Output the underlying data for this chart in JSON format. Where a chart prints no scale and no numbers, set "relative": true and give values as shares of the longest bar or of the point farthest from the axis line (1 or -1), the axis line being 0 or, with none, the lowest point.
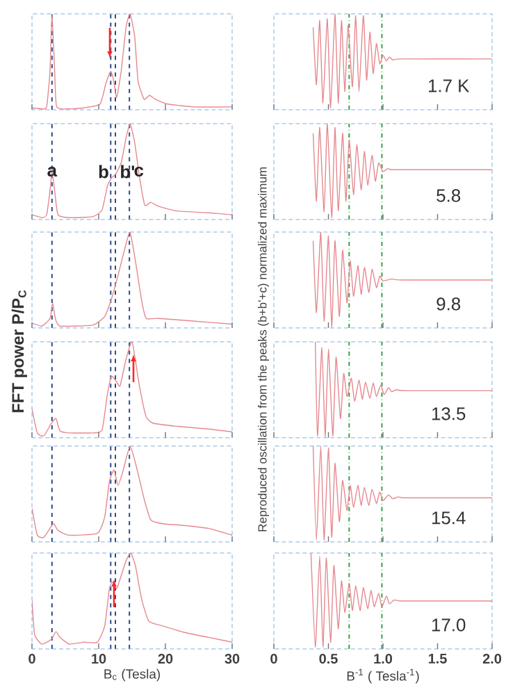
{
  "chart_data": [
    {
      "type": "line",
      "relative": true,
      "color": "#e5898f",
      "xlim": [
        0,
        30
      ],
      "xticks": [
        0,
        10,
        20,
        30
      ],
      "tick_labels": false,
      "x": [
        0,
        1.5,
        2.2,
        2.7,
        3.0,
        3.4,
        3.7,
        5.6,
        7.7,
        10.2,
        11.1,
        11.8,
        12.2,
        12.7,
        13.4,
        14.1,
        14.7,
        15.4,
        15.9,
        16.8,
        17.6,
        18.5,
        20.3,
        24.4,
        30
      ],
      "values": [
        0.02,
        0.01,
        0.03,
        0.4,
        1.0,
        0.4,
        0.03,
        0.01,
        0.02,
        0.06,
        0.28,
        0.4,
        0.32,
        0.13,
        0.42,
        0.86,
        1.0,
        0.76,
        0.3,
        0.11,
        0.15,
        0.11,
        0.06,
        0.03,
        0.03
      ],
      "ref_lines": [
        {
          "axis": "x",
          "value": 3.0,
          "color": "#2e4a8a",
          "line_style": "dashed"
        },
        {
          "axis": "x",
          "value": 11.8,
          "color": "#2e4a8a",
          "line_style": "dashed"
        },
        {
          "axis": "x",
          "value": 12.5,
          "color": "#2e4a8a",
          "line_style": "dashed"
        },
        {
          "axis": "x",
          "value": 14.6,
          "color": "#2e4a8a",
          "line_style": "dashed"
        }
      ]
    },
    {
      "type": "line",
      "relative": true,
      "color": "#e5898f",
      "xlim": [
        0,
        30
      ],
      "xticks": [
        0,
        10,
        20,
        30
      ],
      "tick_labels": false,
      "x": [
        0,
        1.5,
        2.2,
        2.7,
        3.0,
        3.4,
        3.9,
        5.6,
        9.1,
        10.5,
        11.3,
        11.9,
        12.6,
        13.4,
        14.1,
        14.7,
        15.4,
        16.1,
        16.9,
        17.8,
        18.9,
        21.6,
        26.5,
        30
      ],
      "values": [
        0.05,
        0.02,
        0.05,
        0.3,
        0.5,
        0.3,
        0.05,
        0.02,
        0.03,
        0.1,
        0.35,
        0.43,
        0.48,
        0.6,
        0.85,
        1.0,
        0.8,
        0.45,
        0.15,
        0.18,
        0.14,
        0.09,
        0.07,
        0.05
      ],
      "annotations": [
        {
          "text": "a",
          "x": 3.0,
          "y": 0.5
        },
        {
          "text": "b",
          "x": 11.8,
          "y": 0.5
        },
        {
          "text": "b'",
          "x": 12.5,
          "y": 0.5
        },
        {
          "text": "c",
          "x": 14.6,
          "y": 0.5
        }
      ],
      "ref_lines": [
        {
          "axis": "x",
          "value": 3.0,
          "color": "#2e4a8a",
          "line_style": "dashed"
        },
        {
          "axis": "x",
          "value": 11.8,
          "color": "#2e4a8a",
          "line_style": "dashed"
        },
        {
          "axis": "x",
          "value": 12.5,
          "color": "#2e4a8a",
          "line_style": "dashed"
        },
        {
          "axis": "x",
          "value": 14.6,
          "color": "#2e4a8a",
          "line_style": "dashed"
        }
      ]
    },
    {
      "type": "line",
      "relative": true,
      "color": "#e5898f",
      "xlim": [
        0,
        30
      ],
      "xticks": [
        0,
        10,
        20,
        30
      ],
      "tick_labels": false,
      "ylabel": "FFT power P/P$_{C}$",
      "x": [
        0,
        1.5,
        2.7,
        3.1,
        3.5,
        4.2,
        9.1,
        10.9,
        11.9,
        12.9,
        14.0,
        14.7,
        15.5,
        16.4,
        17.1,
        18.9,
        24.4,
        30
      ],
      "values": [
        0.05,
        0.02,
        0.1,
        0.26,
        0.1,
        0.02,
        0.03,
        0.12,
        0.3,
        0.55,
        0.85,
        1.0,
        0.7,
        0.3,
        0.1,
        0.1,
        0.07,
        0.04
      ],
      "ref_lines": [
        {
          "axis": "x",
          "value": 3.0,
          "color": "#2e4a8a",
          "line_style": "dashed"
        },
        {
          "axis": "x",
          "value": 11.8,
          "color": "#2e4a8a",
          "line_style": "dashed"
        },
        {
          "axis": "x",
          "value": 12.5,
          "color": "#2e4a8a",
          "line_style": "dashed"
        },
        {
          "axis": "x",
          "value": 14.6,
          "color": "#2e4a8a",
          "line_style": "dashed"
        }
      ]
    },
    {
      "type": "line",
      "relative": true,
      "color": "#e5898f",
      "xlim": [
        0,
        30
      ],
      "xticks": [
        0,
        10,
        20,
        30
      ],
      "tick_labels": false,
      "x": [
        0,
        0.8,
        1.8,
        2.9,
        3.6,
        4.2,
        5.6,
        9.1,
        10.5,
        11.3,
        11.9,
        12.6,
        13.2,
        14.0,
        15.0,
        16.1,
        17.1,
        18.2,
        21.6,
        26.5,
        30
      ],
      "values": [
        0.3,
        0.05,
        0.02,
        0.15,
        0.2,
        0.07,
        0.05,
        0.05,
        0.08,
        0.45,
        0.64,
        0.59,
        0.54,
        0.79,
        1.0,
        0.54,
        0.22,
        0.15,
        0.12,
        0.09,
        0.06
      ],
      "ref_lines": [
        {
          "axis": "x",
          "value": 3.0,
          "color": "#2e4a8a",
          "line_style": "dashed"
        },
        {
          "axis": "x",
          "value": 11.8,
          "color": "#2e4a8a",
          "line_style": "dashed"
        },
        {
          "axis": "x",
          "value": 12.5,
          "color": "#2e4a8a",
          "line_style": "dashed"
        },
        {
          "axis": "x",
          "value": 14.6,
          "color": "#2e4a8a",
          "line_style": "dashed"
        }
      ]
    },
    {
      "type": "line",
      "relative": true,
      "color": "#e5898f",
      "xlim": [
        0,
        30
      ],
      "xticks": [
        0,
        10,
        20,
        30
      ],
      "tick_labels": false,
      "x": [
        0,
        0.8,
        1.8,
        3.2,
        3.9,
        5.6,
        9.8,
        10.9,
        11.6,
        12.3,
        12.9,
        13.6,
        14.7,
        15.7,
        16.8,
        17.8,
        19.6,
        23.0,
        26.5,
        30
      ],
      "values": [
        0.35,
        0.07,
        0.05,
        0.19,
        0.12,
        0.07,
        0.09,
        0.26,
        0.63,
        0.75,
        0.59,
        0.73,
        1.0,
        0.77,
        0.45,
        0.23,
        0.19,
        0.17,
        0.14,
        0.07
      ],
      "ref_lines": [
        {
          "axis": "x",
          "value": 3.0,
          "color": "#2e4a8a",
          "line_style": "dashed"
        },
        {
          "axis": "x",
          "value": 11.8,
          "color": "#2e4a8a",
          "line_style": "dashed"
        },
        {
          "axis": "x",
          "value": 12.5,
          "color": "#2e4a8a",
          "line_style": "dashed"
        },
        {
          "axis": "x",
          "value": 14.6,
          "color": "#2e4a8a",
          "line_style": "dashed"
        }
      ]
    },
    {
      "type": "line",
      "relative": true,
      "color": "#e5898f",
      "xlim": [
        0,
        30
      ],
      "xticks": [
        0,
        10,
        20,
        30
      ],
      "xlabel": "B$_{c}$ (Tesla)",
      "x": [
        0,
        0.4,
        1.5,
        2.9,
        3.6,
        4.2,
        5.6,
        7.7,
        9.8,
        10.9,
        11.6,
        12.1,
        12.7,
        13.4,
        14.1,
        14.8,
        15.5,
        16.4,
        17.5,
        19.6,
        23.0,
        26.5,
        30
      ],
      "values": [
        0.51,
        0.15,
        0.05,
        0.1,
        0.18,
        0.12,
        0.05,
        0.07,
        0.07,
        0.24,
        0.63,
        0.7,
        0.63,
        0.77,
        0.92,
        1.0,
        0.87,
        0.53,
        0.29,
        0.24,
        0.17,
        0.12,
        0.07
      ],
      "ref_lines": [
        {
          "axis": "x",
          "value": 3.0,
          "color": "#2e4a8a",
          "line_style": "dashed"
        },
        {
          "axis": "x",
          "value": 11.8,
          "color": "#2e4a8a",
          "line_style": "dashed"
        },
        {
          "axis": "x",
          "value": 12.5,
          "color": "#2e4a8a",
          "line_style": "dashed"
        },
        {
          "axis": "x",
          "value": 14.6,
          "color": "#2e4a8a",
          "line_style": "dashed"
        }
      ]
    },
    {
      "type": "line",
      "relative": true,
      "color": "#e5898f",
      "xlim": [
        0,
        2
      ],
      "xticks": [
        0,
        0.5,
        1,
        1.5,
        2
      ],
      "tick_labels": false,
      "annotations": [
        "1.7 K"
      ],
      "x": [
        0.36,
        0.39,
        0.42,
        0.45,
        0.49,
        0.52,
        0.56,
        0.59,
        0.62,
        0.65,
        0.68,
        0.72,
        0.75,
        0.78,
        0.82,
        0.85,
        0.88,
        0.91,
        0.94,
        0.97,
        1.0,
        1.03,
        1.06,
        1.09,
        1.17,
        2.0
      ],
      "values": [
        0.86,
        0.26,
        0.93,
        0.07,
        0.95,
        0.02,
        1.0,
        0.07,
        0.93,
        0.19,
        0.88,
        0.24,
        0.98,
        0.19,
        0.98,
        0.31,
        0.81,
        0.38,
        0.69,
        0.48,
        0.57,
        0.51,
        0.55,
        0.52,
        0.53,
        0.53
      ],
      "ref_lines": [
        {
          "axis": "x",
          "value": 0.69,
          "color": "#3aa04a",
          "line_style": "dashdot"
        },
        {
          "axis": "x",
          "value": 0.99,
          "color": "#3aa04a",
          "line_style": "dashdot"
        }
      ]
    },
    {
      "type": "line",
      "relative": true,
      "color": "#e5898f",
      "xlim": [
        0,
        2
      ],
      "xticks": [
        0,
        0.5,
        1,
        1.5,
        2
      ],
      "tick_labels": false,
      "annotations": [
        "5.8"
      ],
      "x": [
        0.36,
        0.39,
        0.42,
        0.46,
        0.49,
        0.53,
        0.56,
        0.59,
        0.63,
        0.66,
        0.69,
        0.73,
        0.76,
        0.8,
        0.83,
        0.86,
        0.9,
        0.93,
        0.96,
        1.0,
        1.04,
        1.08,
        1.17,
        2.0
      ],
      "values": [
        0.9,
        0.19,
        0.96,
        0.08,
        1.0,
        0.02,
        0.96,
        0.09,
        0.9,
        0.19,
        0.83,
        0.26,
        0.78,
        0.31,
        0.71,
        0.36,
        0.67,
        0.4,
        0.59,
        0.5,
        0.53,
        0.52,
        0.52,
        0.52
      ],
      "ref_lines": [
        {
          "axis": "x",
          "value": 0.69,
          "color": "#3aa04a",
          "line_style": "dashdot"
        },
        {
          "axis": "x",
          "value": 0.99,
          "color": "#3aa04a",
          "line_style": "dashdot"
        }
      ]
    },
    {
      "type": "line",
      "relative": true,
      "color": "#e5898f",
      "xlim": [
        0,
        2
      ],
      "xticks": [
        0,
        0.5,
        1,
        1.5,
        2
      ],
      "tick_labels": false,
      "annotations": [
        "9.8"
      ],
      "ylabel": "Reproduced oscillation from the peaks (b+b'+c) normalized maximum",
      "x": [
        0.36,
        0.39,
        0.43,
        0.46,
        0.5,
        0.53,
        0.56,
        0.6,
        0.63,
        0.67,
        0.7,
        0.73,
        0.77,
        0.8,
        0.83,
        0.87,
        0.9,
        0.94,
        0.97,
        1.0,
        1.08,
        1.17,
        2.0
      ],
      "values": [
        0.91,
        0.16,
        1.0,
        0.07,
        0.96,
        0.01,
        0.91,
        0.12,
        0.81,
        0.26,
        0.7,
        0.33,
        0.65,
        0.35,
        0.63,
        0.37,
        0.61,
        0.42,
        0.54,
        0.49,
        0.51,
        0.5,
        0.5
      ],
      "ref_lines": [
        {
          "axis": "x",
          "value": 0.69,
          "color": "#3aa04a",
          "line_style": "dashdot"
        },
        {
          "axis": "x",
          "value": 0.99,
          "color": "#3aa04a",
          "line_style": "dashdot"
        }
      ]
    },
    {
      "type": "line",
      "relative": true,
      "color": "#e5898f",
      "xlim": [
        0,
        2
      ],
      "xticks": [
        0,
        0.5,
        1,
        1.5,
        2
      ],
      "tick_labels": false,
      "annotations": [
        "13.5"
      ],
      "x": [
        0.38,
        0.4,
        0.44,
        0.47,
        0.5,
        0.54,
        0.57,
        0.61,
        0.64,
        0.67,
        0.71,
        0.74,
        0.78,
        0.81,
        0.84,
        0.88,
        0.91,
        0.94,
        0.98,
        1.01,
        1.05,
        1.08,
        1.12,
        1.21,
        2.0
      ],
      "values": [
        1.0,
        0.02,
        0.94,
        0.01,
        0.92,
        0.02,
        0.84,
        0.2,
        0.67,
        0.43,
        0.62,
        0.38,
        0.6,
        0.4,
        0.58,
        0.41,
        0.57,
        0.43,
        0.55,
        0.45,
        0.52,
        0.48,
        0.5,
        0.49,
        0.49
      ],
      "ref_lines": [
        {
          "axis": "x",
          "value": 0.69,
          "color": "#3aa04a",
          "line_style": "dashdot"
        },
        {
          "axis": "x",
          "value": 0.99,
          "color": "#3aa04a",
          "line_style": "dashdot"
        }
      ]
    },
    {
      "type": "line",
      "relative": true,
      "color": "#e5898f",
      "xlim": [
        0,
        2
      ],
      "xticks": [
        0,
        0.5,
        1,
        1.5,
        2
      ],
      "tick_labels": false,
      "annotations": [
        "15.4"
      ],
      "x": [
        0.36,
        0.39,
        0.43,
        0.46,
        0.5,
        0.53,
        0.56,
        0.6,
        0.63,
        0.67,
        0.7,
        0.73,
        0.77,
        0.8,
        0.83,
        0.87,
        0.9,
        0.94,
        0.97,
        1.0,
        1.05,
        1.09,
        1.14,
        1.21,
        2.0
      ],
      "values": [
        1.0,
        0.02,
        1.0,
        0.02,
        0.98,
        0.05,
        0.82,
        0.21,
        0.64,
        0.33,
        0.59,
        0.36,
        0.59,
        0.38,
        0.57,
        0.38,
        0.55,
        0.4,
        0.52,
        0.43,
        0.49,
        0.45,
        0.47,
        0.46,
        0.46
      ],
      "ref_lines": [
        {
          "axis": "x",
          "value": 0.69,
          "color": "#3aa04a",
          "line_style": "dashdot"
        },
        {
          "axis": "x",
          "value": 0.99,
          "color": "#3aa04a",
          "line_style": "dashdot"
        }
      ]
    },
    {
      "type": "line",
      "relative": true,
      "color": "#e5898f",
      "xlim": [
        0,
        2
      ],
      "xticks": [
        0,
        0.5,
        {
          "value": 1,
          "label": "1.0"
        },
        1.5,
        {
          "value": 2,
          "label": "2.0"
        }
      ],
      "annotations": [
        "17.0"
      ],
      "xlabel": "B$^{-1}$ ( Tesla$^{-1}$)",
      "x": [
        0.34,
        0.38,
        0.42,
        0.45,
        0.48,
        0.52,
        0.55,
        0.59,
        0.62,
        0.65,
        0.69,
        0.72,
        0.75,
        0.79,
        0.82,
        0.86,
        0.89,
        0.92,
        0.96,
        0.99,
        1.03,
        1.06,
        1.1,
        1.16,
        1.25,
        2.0
      ],
      "values": [
        1.0,
        0.02,
        0.97,
        0.02,
        0.95,
        0.07,
        0.87,
        0.21,
        0.71,
        0.38,
        0.68,
        0.4,
        0.66,
        0.4,
        0.64,
        0.42,
        0.61,
        0.44,
        0.58,
        0.44,
        0.55,
        0.47,
        0.51,
        0.5,
        0.5,
        0.5
      ],
      "ref_lines": [
        {
          "axis": "x",
          "value": 0.69,
          "color": "#3aa04a",
          "line_style": "dashdot"
        },
        {
          "axis": "x",
          "value": 0.99,
          "color": "#3aa04a",
          "line_style": "dashdot"
        }
      ]
    }
  ]
}
